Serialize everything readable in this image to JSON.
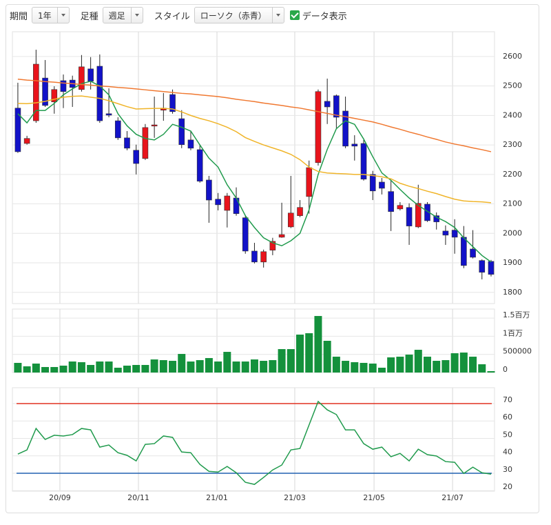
{
  "toolbar": {
    "period_label": "期間",
    "period_value": "1年",
    "interval_label": "足種",
    "interval_value": "週足",
    "style_label": "スタイル",
    "style_value": "ローソク（赤青）",
    "data_label": "データ表示"
  },
  "chart_data": [
    {
      "type": "candlestick",
      "up_color": "#e8141c",
      "down_color": "#1212c8",
      "open": [
        2425,
        2305,
        2382,
        2527,
        2446,
        2518,
        2520,
        2488,
        2558,
        2567,
        2406,
        2382,
        2324,
        2282,
        2254,
        2364,
        2418,
        2471,
        2389,
        2317,
        2284,
        2181,
        2116,
        2078,
        2120,
        2053,
        1940,
        1903,
        1943,
        1987,
        2022,
        2060,
        2125,
        2240,
        2448,
        2467,
        2415,
        2303,
        2305,
        2200,
        2174,
        2142,
        2083,
        2088,
        2022,
        2099,
        2060,
        2008,
        2011,
        1987,
        1947,
        1908,
        1905
      ],
      "high": [
        2511,
        2331,
        2623,
        2588,
        2499,
        2539,
        2535,
        2605,
        2598,
        2607,
        2492,
        2394,
        2347,
        2301,
        2371,
        2464,
        2476,
        2488,
        2418,
        2347,
        2301,
        2195,
        2137,
        2137,
        2156,
        2062,
        1968,
        1945,
        1985,
        2104,
        2195,
        2113,
        2247,
        2488,
        2525,
        2471,
        2464,
        2333,
        2317,
        2212,
        2188,
        2179,
        2106,
        2102,
        2165,
        2106,
        2071,
        2027,
        2048,
        2025,
        2011,
        1912,
        1910
      ],
      "low": [
        2273,
        2301,
        2375,
        2429,
        2406,
        2425,
        2429,
        2481,
        2488,
        2375,
        2394,
        2317,
        2282,
        2200,
        2249,
        2324,
        2382,
        2406,
        2289,
        2282,
        2172,
        2036,
        2078,
        2020,
        2060,
        1931,
        1898,
        1884,
        1926,
        1985,
        2018,
        2055,
        2067,
        2230,
        2371,
        2357,
        2289,
        2247,
        2179,
        2113,
        2132,
        2008,
        2078,
        1961,
        2018,
        2039,
        2013,
        1961,
        1931,
        1882,
        1915,
        1844,
        1854
      ],
      "close": [
        2277,
        2322,
        2574,
        2434,
        2488,
        2481,
        2495,
        2565,
        2516,
        2382,
        2401,
        2324,
        2289,
        2237,
        2359,
        2368,
        2425,
        2413,
        2301,
        2289,
        2177,
        2113,
        2097,
        2127,
        2067,
        1940,
        1903,
        1938,
        1973,
        1996,
        2069,
        2088,
        2223,
        2481,
        2429,
        2394,
        2296,
        2296,
        2184,
        2144,
        2153,
        2074,
        2095,
        2025,
        2102,
        2043,
        2039,
        1994,
        1987,
        1891,
        1919,
        1868,
        1861
      ],
      "lines": [
        {
          "color": "#1f9a4c",
          "values": [
            2406,
            2375,
            2417,
            2417,
            2441,
            2470,
            2490,
            2508,
            2516,
            2500,
            2470,
            2406,
            2365,
            2336,
            2322,
            2317,
            2336,
            2370,
            2360,
            2347,
            2300,
            2255,
            2225,
            2165,
            2120,
            2060,
            2020,
            1985,
            1968,
            1958,
            1975,
            2000,
            2080,
            2200,
            2285,
            2355,
            2382,
            2370,
            2320,
            2260,
            2205,
            2180,
            2149,
            2120,
            2095,
            2075,
            2055,
            2040,
            2020,
            1985,
            1955,
            1925,
            1903
          ]
        },
        {
          "color": "#f0b428",
          "values": [
            2441,
            2440,
            2443,
            2448,
            2455,
            2462,
            2465,
            2466,
            2462,
            2458,
            2450,
            2440,
            2430,
            2422,
            2423,
            2424,
            2424,
            2422,
            2412,
            2400,
            2390,
            2382,
            2372,
            2360,
            2345,
            2325,
            2312,
            2300,
            2290,
            2280,
            2268,
            2250,
            2225,
            2210,
            2205,
            2203,
            2202,
            2200,
            2200,
            2196,
            2192,
            2185,
            2170,
            2160,
            2152,
            2143,
            2135,
            2125,
            2116,
            2110,
            2108,
            2107,
            2104
          ]
        },
        {
          "color": "#f07830",
          "values": [
            2523,
            2520,
            2518,
            2515,
            2513,
            2510,
            2508,
            2505,
            2503,
            2500,
            2498,
            2495,
            2493,
            2490,
            2487,
            2484,
            2481,
            2478,
            2475,
            2473,
            2470,
            2467,
            2464,
            2460,
            2455,
            2451,
            2447,
            2442,
            2438,
            2434,
            2429,
            2425,
            2419,
            2413,
            2407,
            2401,
            2396,
            2390,
            2384,
            2378,
            2370,
            2361,
            2353,
            2344,
            2336,
            2327,
            2319,
            2310,
            2303,
            2297,
            2290,
            2284,
            2277
          ]
        }
      ],
      "ylim": [
        1762,
        2684
      ],
      "yticks": [
        1800,
        1900,
        2000,
        2100,
        2200,
        2300,
        2400,
        2500,
        2600
      ],
      "xlim": [
        -0.6,
        52.38
      ],
      "xticks": [
        {
          "value": 4.62,
          "label": "20/09"
        },
        {
          "value": 13.25,
          "label": "20/11"
        },
        {
          "value": 21.88,
          "label": "21/01"
        },
        {
          "value": 30.43,
          "label": "21/03"
        },
        {
          "value": 39.14,
          "label": "21/05"
        },
        {
          "value": 47.77,
          "label": "21/07"
        }
      ],
      "grid": true
    },
    {
      "type": "bar",
      "color": "#14913c",
      "values": [
        266000,
        171000,
        247000,
        152000,
        152000,
        190000,
        304000,
        285000,
        209000,
        304000,
        304000,
        133000,
        190000,
        209000,
        209000,
        361000,
        342000,
        323000,
        513000,
        304000,
        342000,
        399000,
        304000,
        570000,
        304000,
        304000,
        361000,
        323000,
        342000,
        646000,
        646000,
        1046000,
        1084000,
        1559000,
        875000,
        437000,
        323000,
        285000,
        266000,
        247000,
        133000,
        418000,
        437000,
        494000,
        627000,
        437000,
        323000,
        342000,
        532000,
        551000,
        437000,
        228000,
        38000
      ],
      "ylim": [
        0,
        1750000
      ],
      "yticks": [
        0,
        500000,
        {
          "value": 1000000,
          "label": "1百万"
        },
        {
          "value": 1500000,
          "label": "1.5百万"
        }
      ],
      "grid": true
    },
    {
      "type": "line",
      "color": "#1f9a4c",
      "values": [
        41,
        43.4,
        55.7,
        49.4,
        51.8,
        51.4,
        52.2,
        55.7,
        54.9,
        45,
        46.2,
        41.8,
        40.3,
        37.1,
        46.6,
        47,
        51.4,
        50.6,
        42.2,
        41.8,
        35.1,
        31.1,
        30.7,
        33.9,
        30.3,
        24.8,
        23.6,
        27.6,
        31.9,
        34.7,
        43.4,
        44.2,
        57.7,
        71.2,
        66.4,
        63.7,
        54.9,
        54.9,
        47,
        43.8,
        45,
        39.5,
        41.4,
        37.1,
        43.8,
        40.7,
        39.9,
        36.7,
        36.3,
        29.9,
        33.5,
        30.3,
        29.5
      ],
      "hlines": [
        {
          "value": 70,
          "color": "#e03020"
        },
        {
          "value": 30,
          "color": "#2060b0"
        }
      ],
      "ylim": [
        19.7,
        79.1
      ],
      "yticks": [
        20,
        30,
        40,
        50,
        60,
        70
      ],
      "grid": true
    }
  ]
}
